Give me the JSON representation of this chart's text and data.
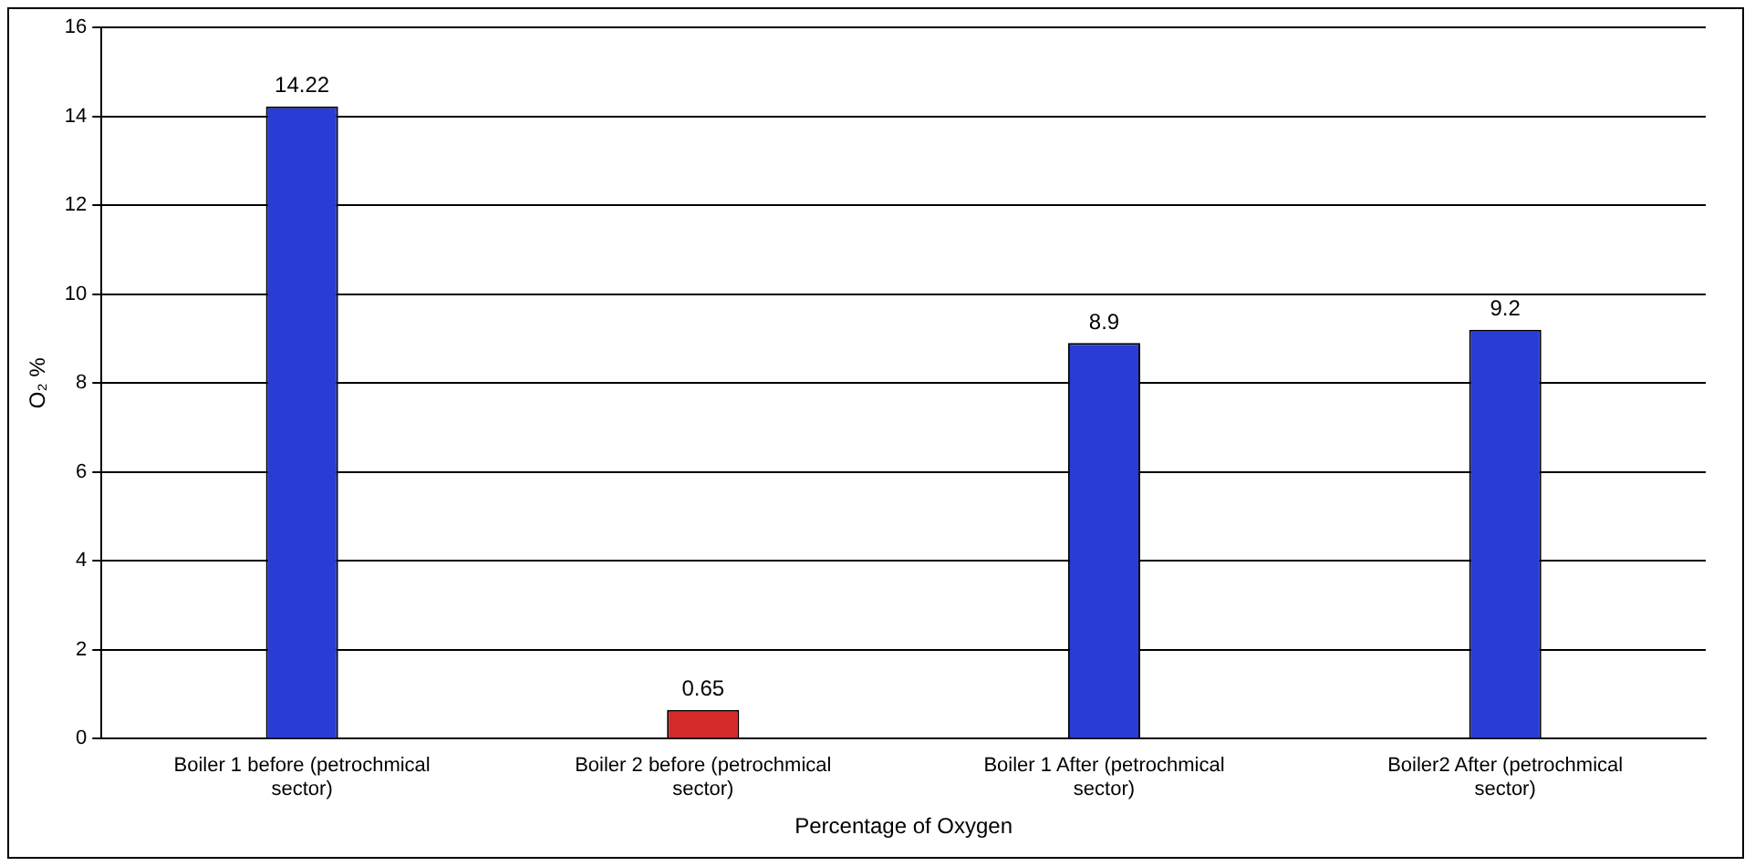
{
  "chart_data": {
    "type": "bar",
    "xlabel": "Percentage of Oxygen",
    "ylabel": "O₂ %",
    "categories": [
      "Boiler 1 before (petrochmical sector)",
      "Boiler 2 before (petrochmical sector)",
      "Boiler 1 After (petrochmical sector)",
      "Boiler2 After (petrochmical sector)"
    ],
    "values": [
      14.22,
      0.65,
      8.9,
      9.2
    ],
    "colors": [
      "#2a3cd6",
      "#d42a2a",
      "#2a3cd6",
      "#2a3cd6"
    ],
    "ylim": [
      0,
      16
    ],
    "yticks": [
      0,
      2,
      4,
      6,
      8,
      10,
      12,
      14,
      16
    ],
    "grid": "y",
    "data_labels": true
  }
}
